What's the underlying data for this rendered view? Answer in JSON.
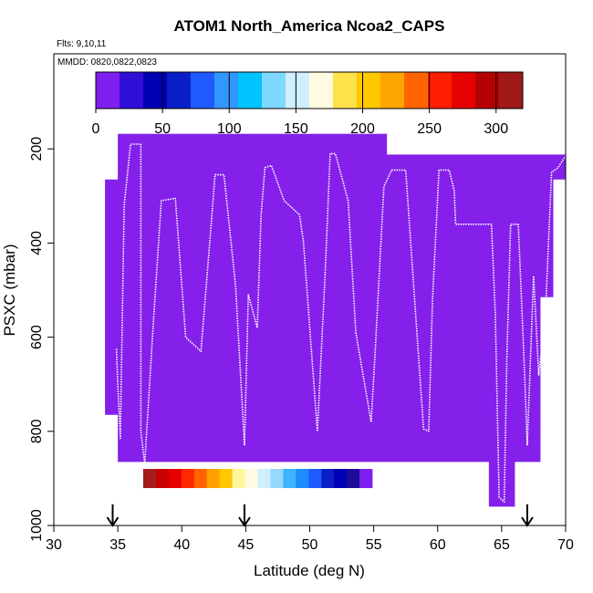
{
  "chart_data": {
    "type": "heatmap",
    "title": "ATOM1 North_America Ncoa2_CAPS",
    "subtitle_flights": "Flts: 9,10,11",
    "subtitle_dates": "MMDD: 0820,0822,0823",
    "xlabel": "Latitude (deg N)",
    "ylabel": "PSXC (mbar)",
    "xlim": [
      30,
      70
    ],
    "ylim": [
      1000,
      0
    ],
    "y_reversed": true,
    "x_ticks": [
      30,
      35,
      40,
      45,
      50,
      55,
      60,
      65,
      70
    ],
    "y_ticks": [
      200,
      400,
      600,
      800,
      1000
    ],
    "grid": false,
    "colorbar": {
      "placement": "top",
      "range": [
        0,
        320
      ],
      "ticks": [
        0,
        50,
        100,
        150,
        200,
        250,
        300
      ],
      "colors": [
        "#7f1fef",
        "#3010d8",
        "#0000b4",
        "#0a1ec8",
        "#1e5aff",
        "#3296ff",
        "#00c3ff",
        "#7fd9ff",
        "#cfefff",
        "#fffbe0",
        "#ffe14b",
        "#ffc800",
        "#ffa500",
        "#ff6400",
        "#ff1e00",
        "#e60000",
        "#b40000",
        "#9e1a1a"
      ]
    },
    "lower_colorbar": {
      "colors": [
        "#a51c1c",
        "#c80000",
        "#e60000",
        "#ff2800",
        "#ff6400",
        "#ffa000",
        "#ffc800",
        "#fff59b",
        "#fffbe0",
        "#cfefff",
        "#96d8ff",
        "#3cb4ff",
        "#1e8cff",
        "#1e5aff",
        "#0a1ec8",
        "#0000b4",
        "#1c0c96",
        "#7f1fef"
      ]
    },
    "field_color": "#8420ea",
    "field_segments": [
      {
        "lat_start": 34.0,
        "lat_end": 35.0,
        "p_top": 265,
        "p_bottom": 765
      },
      {
        "lat_start": 35.0,
        "lat_end": 49.0,
        "p_top": 168,
        "p_bottom": 865
      },
      {
        "lat_start": 49.0,
        "lat_end": 56.0,
        "p_top": 168,
        "p_bottom": 865
      },
      {
        "lat_start": 56.0,
        "lat_end": 64.0,
        "p_top": 212,
        "p_bottom": 865
      },
      {
        "lat_start": 64.0,
        "lat_end": 66.0,
        "p_top": 212,
        "p_bottom": 960
      },
      {
        "lat_start": 66.0,
        "lat_end": 67.0,
        "p_top": 212,
        "p_bottom": 865
      },
      {
        "lat_start": 67.0,
        "lat_end": 68.0,
        "p_top": 212,
        "p_bottom": 865
      },
      {
        "lat_start": 68.0,
        "lat_end": 69.0,
        "p_top": 212,
        "p_bottom": 515
      },
      {
        "lat_start": 69.0,
        "lat_end": 70.0,
        "p_top": 212,
        "p_bottom": 265
      }
    ],
    "flight_track": [
      [
        34.9,
        625
      ],
      [
        35.0,
        700
      ],
      [
        35.2,
        815
      ],
      [
        35.5,
        320
      ],
      [
        36.0,
        190
      ],
      [
        36.8,
        190
      ],
      [
        36.8,
        800
      ],
      [
        37.1,
        870
      ],
      [
        37.8,
        560
      ],
      [
        38.4,
        310
      ],
      [
        39.5,
        305
      ],
      [
        40.3,
        600
      ],
      [
        41.5,
        630
      ],
      [
        42.3,
        360
      ],
      [
        42.6,
        255
      ],
      [
        43.3,
        255
      ],
      [
        44.2,
        490
      ],
      [
        44.9,
        830
      ],
      [
        45.2,
        510
      ],
      [
        45.5,
        540
      ],
      [
        45.9,
        580
      ],
      [
        46.2,
        340
      ],
      [
        46.5,
        240
      ],
      [
        47.0,
        235
      ],
      [
        48.0,
        310
      ],
      [
        49.2,
        340
      ],
      [
        49.5,
        395
      ],
      [
        50.0,
        580
      ],
      [
        50.6,
        800
      ],
      [
        51.2,
        470
      ],
      [
        51.6,
        210
      ],
      [
        52.0,
        210
      ],
      [
        53.0,
        310
      ],
      [
        53.6,
        590
      ],
      [
        54.8,
        780
      ],
      [
        55.1,
        640
      ],
      [
        55.8,
        280
      ],
      [
        56.4,
        245
      ],
      [
        57.5,
        245
      ],
      [
        58.3,
        560
      ],
      [
        58.9,
        795
      ],
      [
        59.3,
        800
      ],
      [
        59.6,
        520
      ],
      [
        60.1,
        245
      ],
      [
        60.9,
        245
      ],
      [
        61.3,
        290
      ],
      [
        61.4,
        360
      ],
      [
        64.2,
        360
      ],
      [
        64.5,
        550
      ],
      [
        64.8,
        940
      ],
      [
        65.2,
        950
      ],
      [
        65.4,
        650
      ],
      [
        65.7,
        360
      ],
      [
        66.3,
        360
      ],
      [
        66.8,
        680
      ],
      [
        67.0,
        830
      ],
      [
        67.5,
        470
      ],
      [
        67.9,
        680
      ],
      [
        68.4,
        560
      ],
      [
        68.9,
        250
      ],
      [
        69.4,
        240
      ],
      [
        70.0,
        215
      ]
    ],
    "markers_lat": [
      34.6,
      44.9,
      67.0
    ],
    "marker_pressure_range": [
      955,
      1000
    ]
  }
}
